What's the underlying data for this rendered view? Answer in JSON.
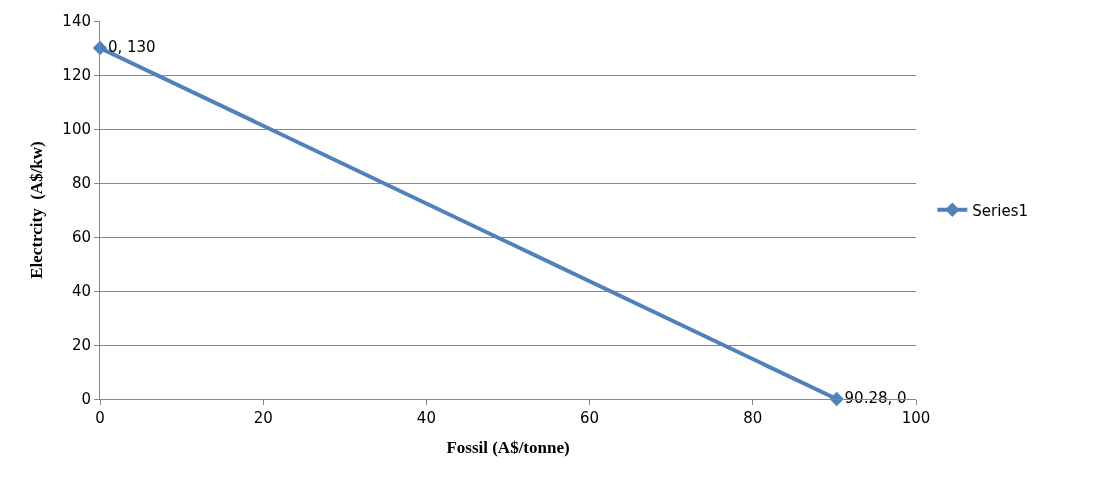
{
  "chart_data": {
    "type": "line",
    "xlabel": "Fossil (A$/tonne)",
    "ylabel": "Electrcity  (A$/kw)",
    "series": [
      {
        "name": "Series1",
        "color": "#4f81bd",
        "x": [
          0,
          90.28
        ],
        "values": [
          130,
          0
        ],
        "value_labels": [
          "0, 130",
          "90.28, 0"
        ]
      }
    ],
    "xlim": [
      0,
      100
    ],
    "xticks": [
      0,
      20,
      40,
      60,
      80,
      100
    ],
    "ylim": [
      0,
      140
    ],
    "yticks": [
      0,
      20,
      40,
      60,
      80,
      100,
      120,
      140
    ],
    "grid": "y",
    "legend": "right",
    "marker": "diamond",
    "line_style": "solid"
  }
}
